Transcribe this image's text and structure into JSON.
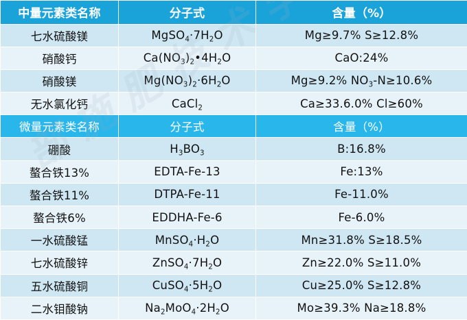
{
  "watermark": "部施肥技术学院",
  "major": {
    "header": {
      "name": "中量元素类名称",
      "formula": "分子式",
      "content": "含量（%）"
    },
    "rows": [
      {
        "name": "七水硫酸镁",
        "formula": [
          [
            "MgSO"
          ],
          [
            "4",
            true
          ],
          [
            "·7H"
          ],
          [
            "2",
            true
          ],
          [
            "O"
          ]
        ],
        "content": "Mg≥9.7%  S≥12.8%"
      },
      {
        "name": "硝酸钙",
        "formula": [
          [
            "Ca(NO"
          ],
          [
            "3",
            true
          ],
          [
            ")"
          ],
          [
            "2",
            true
          ],
          [
            "•4H"
          ],
          [
            "2",
            true
          ],
          [
            "O"
          ]
        ],
        "content": "CaO:24%"
      },
      {
        "name": "硝酸镁",
        "formula": [
          [
            "Mg(NO"
          ],
          [
            "3",
            true
          ],
          [
            ")"
          ],
          [
            "2",
            true
          ],
          [
            "·6H"
          ],
          [
            "2",
            true
          ],
          [
            "O"
          ]
        ],
        "content": [
          [
            "Mg≥9.2% NO"
          ],
          [
            "3",
            true
          ],
          [
            "-N≥10.6%"
          ]
        ]
      },
      {
        "name": "无水氯化钙",
        "formula": [
          [
            "CaCl"
          ],
          [
            "2",
            true
          ]
        ],
        "content": "Ca≥33.6.0%   Cl≥60%"
      }
    ]
  },
  "micro": {
    "header": {
      "name": "微量元素类名称",
      "formula": "分子式",
      "content": "含量（%）"
    },
    "rows": [
      {
        "name": "硼酸",
        "formula": [
          [
            "H"
          ],
          [
            "3",
            true
          ],
          [
            "BO"
          ],
          [
            "3",
            true
          ]
        ],
        "content": "B:16.8%"
      },
      {
        "name": "螯合铁13%",
        "formula": "EDTA-Fe-13",
        "content": "Fe:13%"
      },
      {
        "name": "螯合铁11%",
        "formula": "DTPA-Fe-11",
        "content": "Fe-11.0%"
      },
      {
        "name": "螯合铁6%",
        "formula": "EDDHA-Fe-6",
        "content": "Fe-6.0%"
      },
      {
        "name": "一水硫酸锰",
        "formula": [
          [
            "MnSO"
          ],
          [
            "4",
            true
          ],
          [
            "·H"
          ],
          [
            "2",
            true
          ],
          [
            "O"
          ]
        ],
        "content": "Mn≥31.8%  S≥18.5%"
      },
      {
        "name": "七水硫酸锌",
        "formula": [
          [
            "ZnSO"
          ],
          [
            "4",
            true
          ],
          [
            "·7H"
          ],
          [
            "2",
            true
          ],
          [
            "O"
          ]
        ],
        "content": "Zn≥22.0%  S≥11.0%"
      },
      {
        "name": "五水硫酸铜",
        "formula": [
          [
            "CuSO"
          ],
          [
            "4",
            true
          ],
          [
            "·5H"
          ],
          [
            "2",
            true
          ],
          [
            "O"
          ]
        ],
        "content": "Cu≥25.0%  S≥12.8%"
      },
      {
        "name": "二水钼酸钠",
        "formula": [
          [
            "Na"
          ],
          [
            "2",
            true
          ],
          [
            "MoO"
          ],
          [
            "4",
            true
          ],
          [
            "·2H"
          ],
          [
            "2",
            true
          ],
          [
            "O"
          ]
        ],
        "content": "Mo≥39.3%  Na≥18.8%"
      }
    ]
  }
}
